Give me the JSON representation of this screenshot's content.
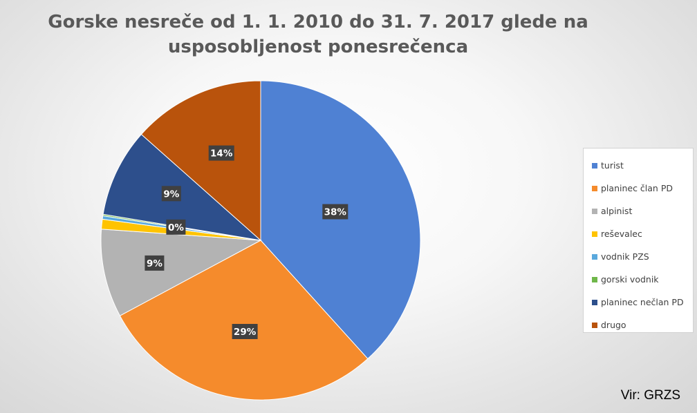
{
  "chart_data": {
    "type": "pie",
    "title_lines": [
      "Gorske nesreče od 1. 1. 2010 do 31. 7. 2017 glede na",
      "usposobljenost ponesrečenca"
    ],
    "slices": [
      {
        "label": "turist",
        "value": 38.5,
        "display": "38%",
        "color": "#4f81d3"
      },
      {
        "label": "planinec član PD",
        "value": 29.0,
        "display": "29%",
        "color": "#f58b2c"
      },
      {
        "label": "alpinist",
        "value": 9.0,
        "display": "9%",
        "color": "#b3b3b3"
      },
      {
        "label": "reševalec",
        "value": 1.0,
        "display": "",
        "color": "#ffc300"
      },
      {
        "label": "vodnik PZS",
        "value": 0.35,
        "display": "0%",
        "color": "#5aa9dd"
      },
      {
        "label": "gorski vodnik",
        "value": 0.15,
        "display": "",
        "color": "#6fb74a"
      },
      {
        "label": "planinec nečlan PD",
        "value": 9.0,
        "display": "9%",
        "color": "#2d4f8c"
      },
      {
        "label": "drugo",
        "value": 13.5,
        "display": "14%",
        "color": "#b9530c"
      }
    ],
    "legend_position": "right"
  },
  "source_note": "Vir: GRZS"
}
